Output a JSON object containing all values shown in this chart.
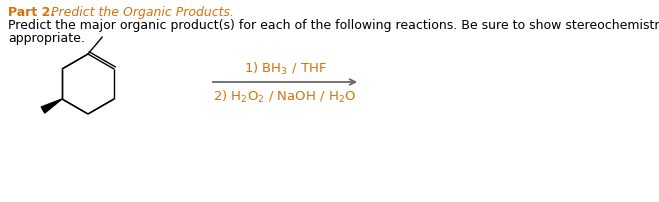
{
  "title_bold": "Part 2.",
  "title_italic": " Predict the Organic Products.",
  "body_line1": "Predict the major organic product(s) for each of the following reactions. Be sure to show stereochemistry when",
  "body_line2": "appropriate.",
  "reagent1": "1) BH$_3$ / THF",
  "reagent2": "2) H$_2$O$_2$ / NaOH / H$_2$O",
  "text_color": "#000000",
  "orange_color": "#d4720a",
  "bg_color": "#ffffff",
  "arrow_color": "#666666",
  "molecule_color": "#000000",
  "font_size_title": 9.0,
  "font_size_body": 9.0,
  "font_size_reagent": 9.5
}
